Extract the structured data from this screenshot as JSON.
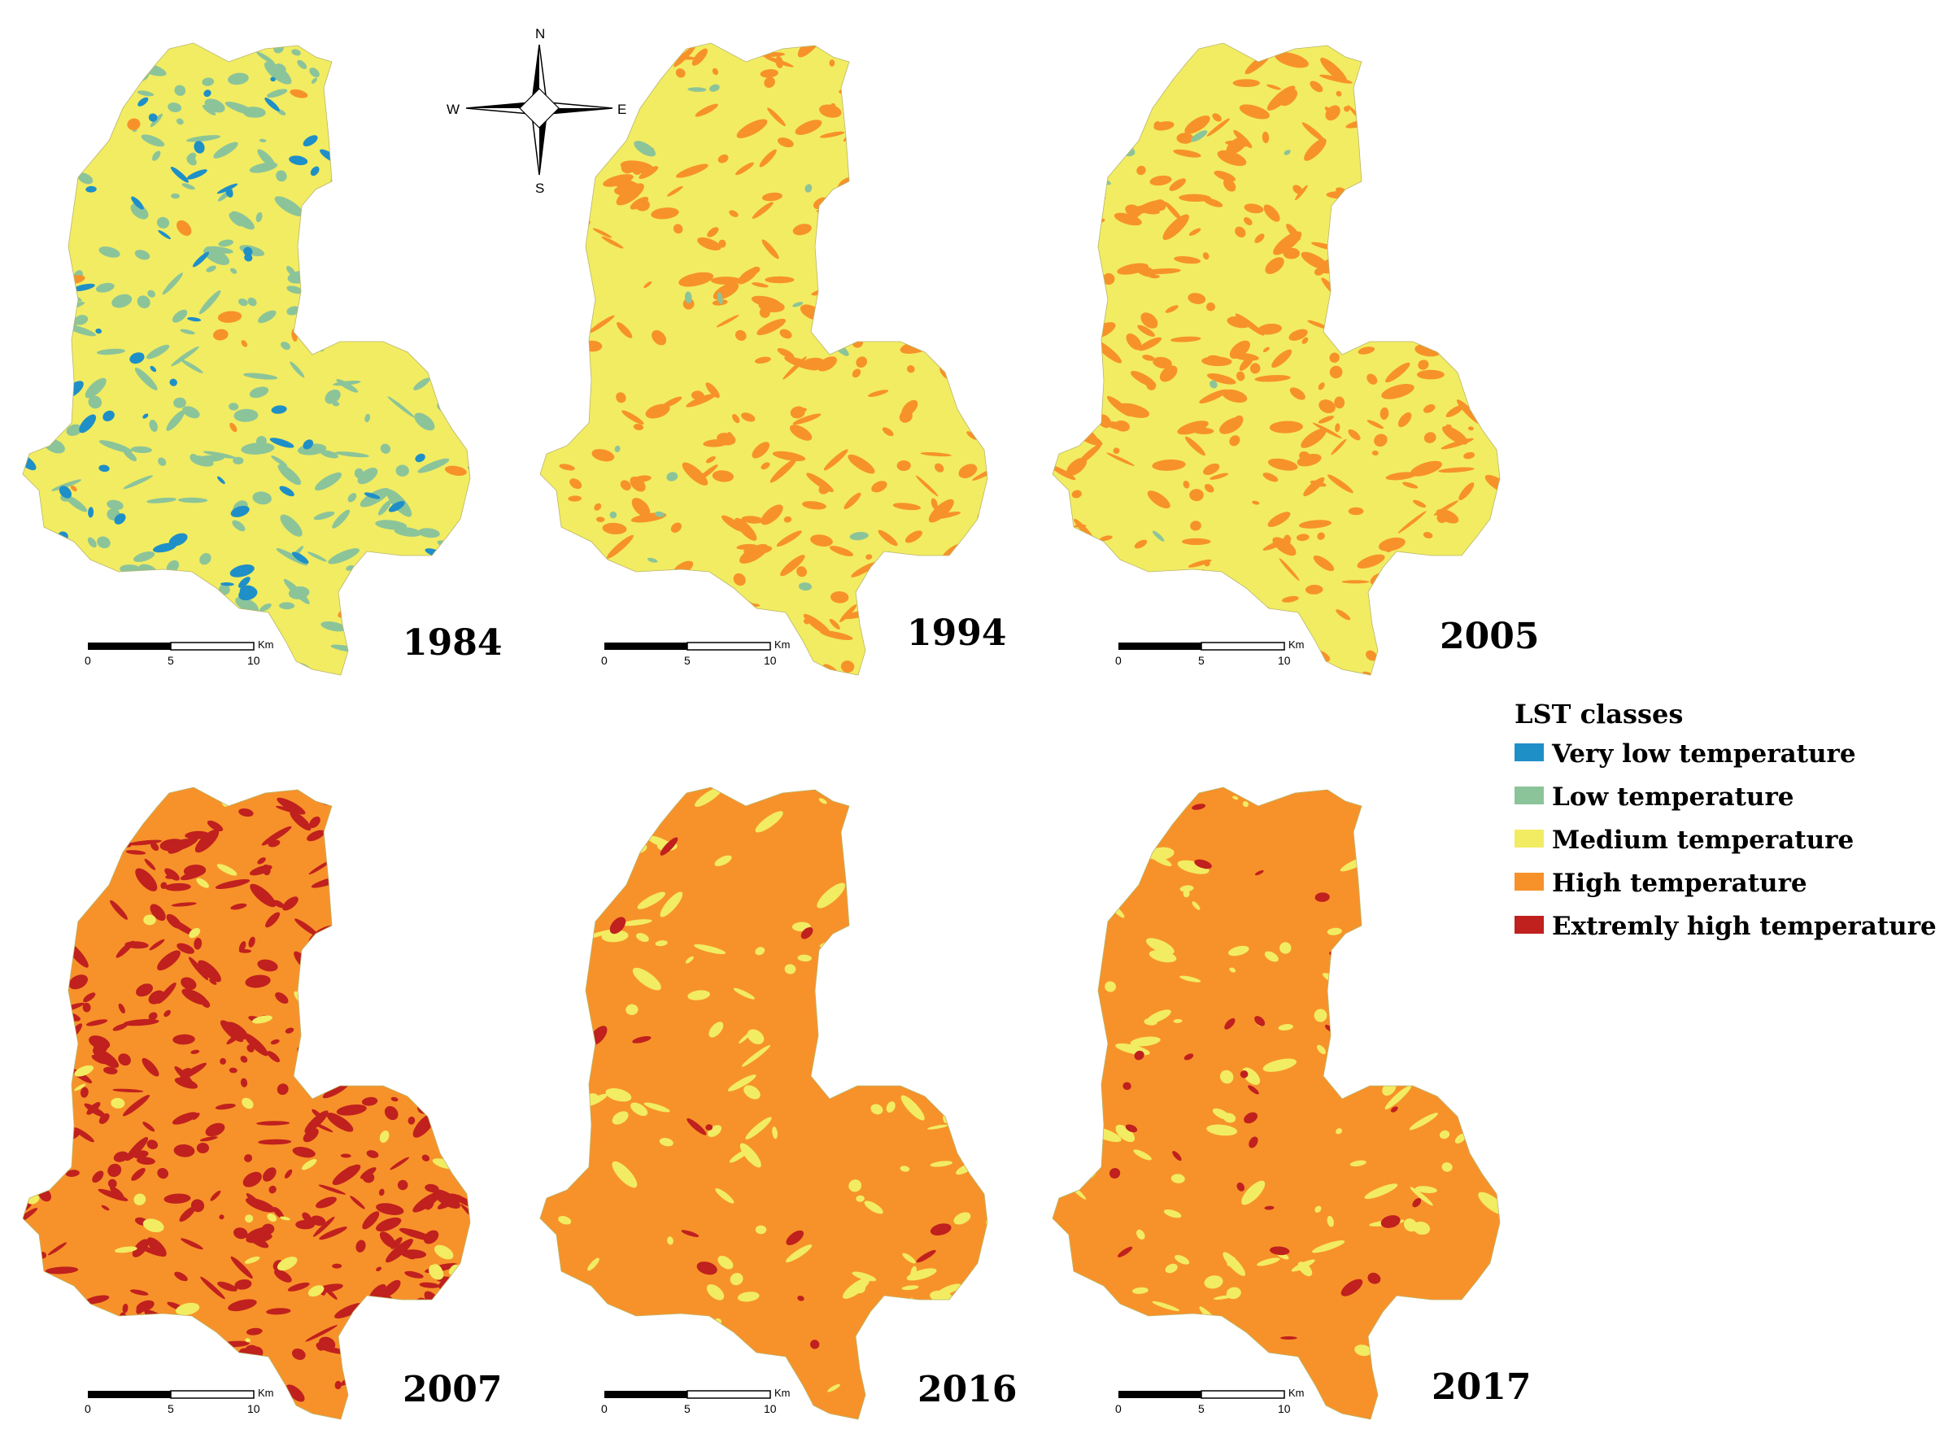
{
  "classes": [
    {
      "id": "very-low",
      "label": "Very low temperature",
      "color": "#1f8fc8"
    },
    {
      "id": "low",
      "label": "Low temperature",
      "color": "#8cc49a"
    },
    {
      "id": "medium",
      "label": "Medium temperature",
      "color": "#f2ec62"
    },
    {
      "id": "high",
      "label": "High temperature",
      "color": "#f7922a"
    },
    {
      "id": "extreme",
      "label": "Extremly high temperature",
      "color": "#c0201e"
    }
  ],
  "legend": {
    "title": "LST classes",
    "items": [
      {
        "label": "Very low temperature",
        "color": "#1f8fc8"
      },
      {
        "label": "Low temperature",
        "color": "#8cc49a"
      },
      {
        "label": "Medium temperature",
        "color": "#f2ec62"
      },
      {
        "label": "High temperature",
        "color": "#f7922a"
      },
      {
        "label": "Extremly high temperature",
        "color": "#c0201e"
      }
    ]
  },
  "compass": {
    "north": "N",
    "south": "S",
    "east": "E",
    "west": "W"
  },
  "scale_bar": {
    "ticks": [
      "0",
      "5",
      "10"
    ],
    "unit": "Km"
  },
  "panels": [
    {
      "year": "1984",
      "base": "medium",
      "patches": [
        [
          "low",
          0.34
        ],
        [
          "very-low",
          0.11
        ],
        [
          "high",
          0.02
        ]
      ]
    },
    {
      "year": "1994",
      "base": "medium",
      "patches": [
        [
          "high",
          0.36
        ],
        [
          "low",
          0.03
        ]
      ]
    },
    {
      "year": "2005",
      "base": "medium",
      "patches": [
        [
          "high",
          0.42
        ],
        [
          "low",
          0.01
        ]
      ]
    },
    {
      "year": "2007",
      "base": "high",
      "patches": [
        [
          "extreme",
          0.5
        ],
        [
          "medium",
          0.06
        ]
      ]
    },
    {
      "year": "2016",
      "base": "high",
      "patches": [
        [
          "medium",
          0.14
        ],
        [
          "extreme",
          0.03
        ]
      ]
    },
    {
      "year": "2017",
      "base": "high",
      "patches": [
        [
          "medium",
          0.16
        ],
        [
          "extreme",
          0.06
        ]
      ]
    }
  ]
}
